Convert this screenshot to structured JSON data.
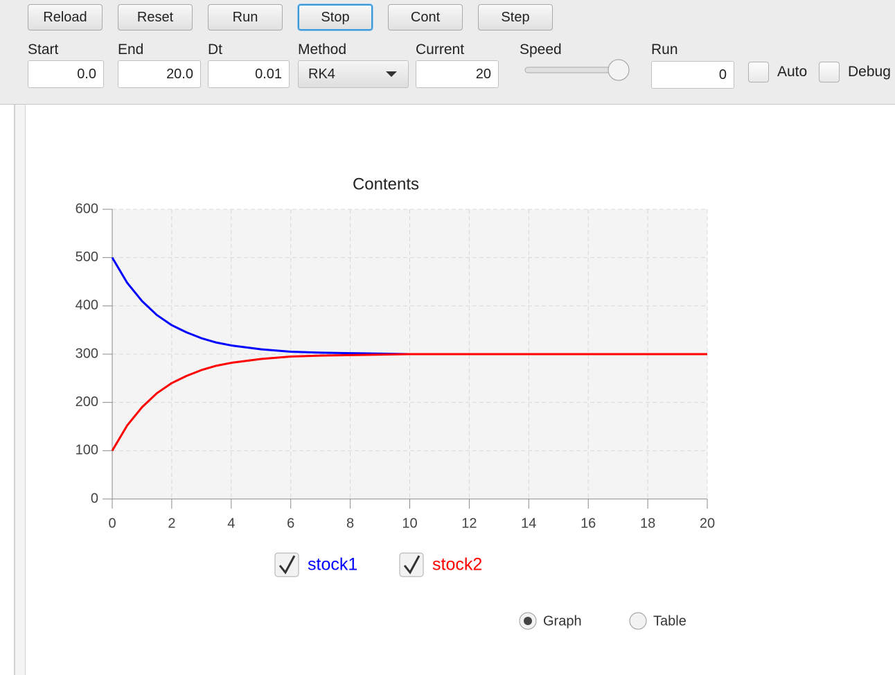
{
  "toolbar": {
    "buttons": [
      "Reload",
      "Reset",
      "Run",
      "Stop",
      "Cont",
      "Step"
    ],
    "fields": [
      {
        "label": "Start",
        "value": "0.0"
      },
      {
        "label": "End",
        "value": "20.0"
      },
      {
        "label": "Dt",
        "value": "0.01"
      },
      {
        "label": "Method",
        "value": "RK4"
      },
      {
        "label": "Current",
        "value": "20"
      },
      {
        "label": "Speed"
      },
      {
        "label": "Run",
        "value": "0"
      }
    ],
    "checkboxes": [
      "Auto",
      "Debug"
    ]
  },
  "chart_data": {
    "type": "line",
    "title": "Contents",
    "x": [
      0,
      0.5,
      1,
      1.5,
      2,
      2.5,
      3,
      3.5,
      4,
      5,
      6,
      7,
      8,
      10,
      20
    ],
    "series": [
      {
        "name": "stock1",
        "color": "#0000ff",
        "values": [
          500,
          448,
          410,
          381,
          360,
          345,
          333,
          324,
          318,
          310,
          305,
          303,
          302,
          300,
          300
        ]
      },
      {
        "name": "stock2",
        "color": "#ff0000",
        "values": [
          100,
          152,
          190,
          219,
          240,
          255,
          267,
          276,
          282,
          290,
          295,
          297,
          298,
          300,
          300
        ]
      }
    ],
    "xlim": [
      0,
      20
    ],
    "xticks": [
      0,
      2,
      4,
      6,
      8,
      10,
      12,
      14,
      16,
      18,
      20
    ],
    "ylim": [
      0,
      600
    ],
    "yticks": [
      0,
      100,
      200,
      300,
      400,
      500,
      600
    ],
    "grid": true
  },
  "view": {
    "options": [
      "Graph",
      "Table"
    ],
    "selected": "Graph"
  }
}
